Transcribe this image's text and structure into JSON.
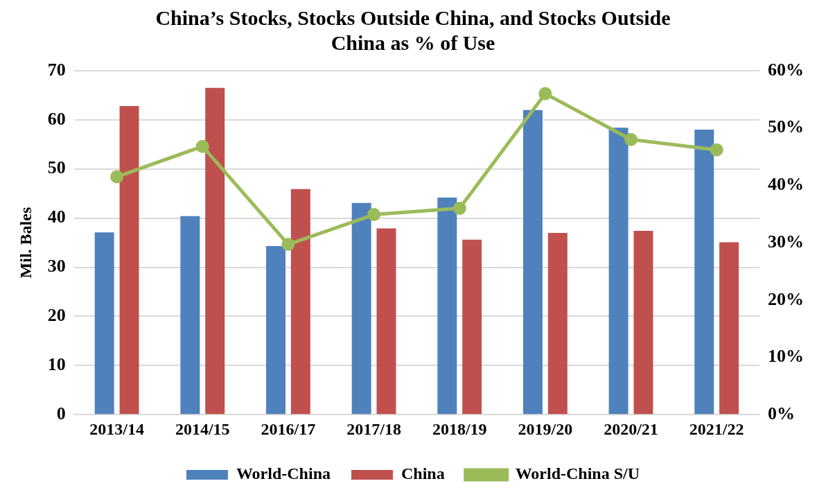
{
  "chart_data": {
    "type": "bar",
    "title": "China’s Stocks, Stocks Outside China, and Stocks Outside China as % of Use",
    "ylabel": "Mil. Bales",
    "categories": [
      "2013/14",
      "2014/15",
      "2016/17",
      "2017/18",
      "2018/19",
      "2019/20",
      "2020/21",
      "2021/22"
    ],
    "series": [
      {
        "name": "World-China",
        "color": "#4f81bd",
        "values": [
          37.1,
          40.4,
          34.3,
          43.1,
          44.2,
          62,
          58.4,
          58
        ]
      },
      {
        "name": "China",
        "color": "#c0504d",
        "values": [
          62.8,
          66.5,
          45.9,
          37.9,
          35.6,
          37,
          37.4,
          35.1
        ]
      },
      {
        "name": "World-China S/U",
        "type": "line",
        "axis": "y2",
        "color": "#9bbb59",
        "values": [
          41.5,
          46.8,
          29.7,
          34.9,
          36,
          56,
          48,
          46.2
        ]
      }
    ],
    "ylim": [
      0,
      70
    ],
    "yticks": [
      0,
      10,
      20,
      30,
      40,
      50,
      60,
      70
    ],
    "y2lim": [
      0,
      60
    ],
    "y2ticks": [
      {
        "value": 0,
        "label": "0%"
      },
      {
        "value": 10,
        "label": "10%"
      },
      {
        "value": 20,
        "label": "20%"
      },
      {
        "value": 30,
        "label": "30%"
      },
      {
        "value": 40,
        "label": "40%"
      },
      {
        "value": 50,
        "label": "50%"
      },
      {
        "value": 60,
        "label": "60%"
      }
    ],
    "grid": "y",
    "legend": "bottom",
    "marker": "circle",
    "line_style": "solid"
  }
}
